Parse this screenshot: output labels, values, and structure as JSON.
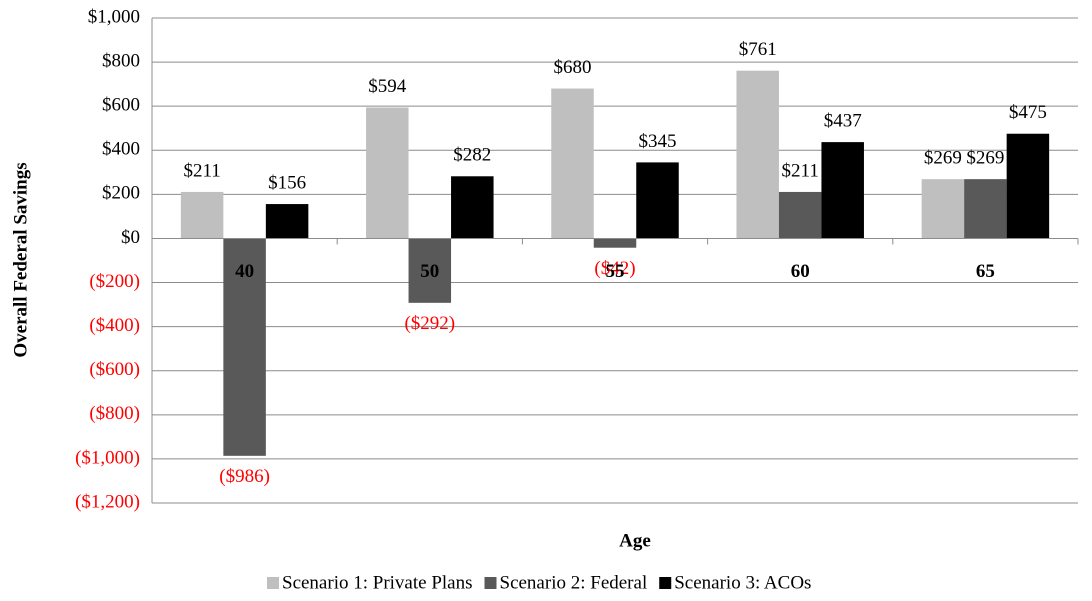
{
  "chart_data": {
    "type": "bar",
    "x_label": "Age",
    "y_label": "Overall Federal Savings",
    "categories": [
      "40",
      "50",
      "55",
      "60",
      "65"
    ],
    "series": [
      {
        "name": "Scenario 1: Private Plans",
        "color": "#bfbfbf",
        "values": [
          211,
          594,
          680,
          761,
          269
        ],
        "value_labels": [
          "$211",
          "$594",
          "$680",
          "$761",
          "$269"
        ]
      },
      {
        "name": "Scenario 2: Federal",
        "color": "#595959",
        "values": [
          -986,
          -292,
          -42,
          211,
          269
        ],
        "value_labels": [
          "($986)",
          "($292)",
          "($42)",
          "$211",
          "$269"
        ]
      },
      {
        "name": "Scenario 3: ACOs",
        "color": "#000000",
        "values": [
          156,
          282,
          345,
          437,
          475
        ],
        "value_labels": [
          "$156",
          "$282",
          "$345",
          "$437",
          "$475"
        ]
      }
    ],
    "ylim": [
      -1200,
      1000
    ],
    "yticks": [
      {
        "value": 1000,
        "label": "$1,000"
      },
      {
        "value": 800,
        "label": "$800"
      },
      {
        "value": 600,
        "label": "$600"
      },
      {
        "value": 400,
        "label": "$400"
      },
      {
        "value": 200,
        "label": "$200"
      },
      {
        "value": 0,
        "label": "$0"
      },
      {
        "value": -200,
        "label": "($200)"
      },
      {
        "value": -400,
        "label": "($400)"
      },
      {
        "value": -600,
        "label": "($600)"
      },
      {
        "value": -800,
        "label": "($800)"
      },
      {
        "value": -1000,
        "label": "($1,000)"
      },
      {
        "value": -1200,
        "label": "($1,200)"
      }
    ],
    "grid": true,
    "negative_label_color": "#ff0000",
    "legend": "bottom"
  }
}
